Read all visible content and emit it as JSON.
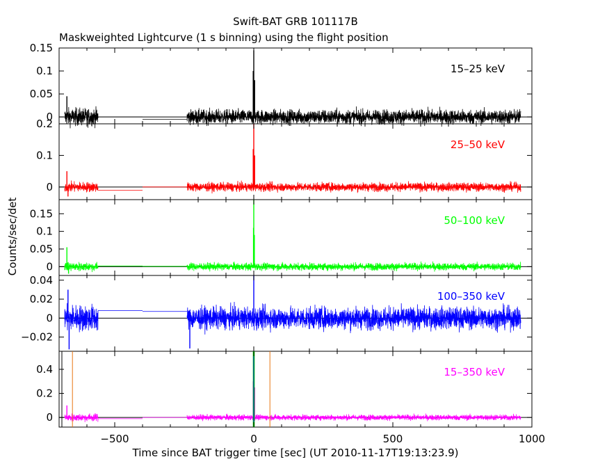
{
  "title": "Swift-BAT GRB 101117B",
  "subtitle": "Maskweighted Lightcurve (1 s binning) using the flight position",
  "ylabel": "Counts/sec/det",
  "xlabel": "Time since BAT trigger time [sec] (UT 2010-11-17T19:13:23.9)",
  "x_tick_labels": [
    "−500",
    "0",
    "500",
    "1000"
  ],
  "colors": {
    "axes": "#000000",
    "vlines_orange": "#e87511",
    "vline_green": "#00cc00",
    "vline_blue": "#0000ff"
  },
  "chart_data": [
    {
      "type": "line",
      "band": "15–25 keV",
      "color": "#000000",
      "xlim": [
        -700,
        1000
      ],
      "ylim": [
        -0.015,
        0.15
      ],
      "y_ticks": [
        "0.15",
        "0.1",
        "0.05",
        "0"
      ],
      "y_tick_values": [
        0.15,
        0.1,
        0.05,
        0
      ],
      "segments": [
        {
          "x": [
            -680,
            -560
          ],
          "y": 0.0,
          "noise": 0.018
        },
        {
          "x": [
            -560,
            -400
          ],
          "y": 0.0,
          "noise": 0
        },
        {
          "x": [
            -400,
            -240
          ],
          "y": -0.005,
          "noise": 0
        },
        {
          "x": [
            -240,
            960
          ],
          "y": 0.0,
          "noise": 0.015
        }
      ],
      "spikes": [
        {
          "x": -672,
          "y": 0.045
        },
        {
          "x": -2,
          "y": 0.1
        },
        {
          "x": 0,
          "y": 0.145
        },
        {
          "x": 3,
          "y": 0.08
        }
      ]
    },
    {
      "type": "line",
      "band": "25–50 keV",
      "color": "#ff0000",
      "xlim": [
        -700,
        1000
      ],
      "ylim": [
        -0.04,
        0.2
      ],
      "y_ticks": [
        "0.2",
        "0.1",
        "0"
      ],
      "y_tick_values": [
        0.2,
        0.1,
        0
      ],
      "segments": [
        {
          "x": [
            -680,
            -560
          ],
          "y": 0.0,
          "noise": 0.015
        },
        {
          "x": [
            -560,
            -400
          ],
          "y": -0.01,
          "noise": 0
        },
        {
          "x": [
            -400,
            -240
          ],
          "y": 0.0,
          "noise": 0
        },
        {
          "x": [
            -240,
            960
          ],
          "y": 0.0,
          "noise": 0.013
        }
      ],
      "spikes": [
        {
          "x": -672,
          "y": 0.05
        },
        {
          "x": -668,
          "y": -0.03
        },
        {
          "x": -2,
          "y": 0.12
        },
        {
          "x": 0,
          "y": 0.2
        },
        {
          "x": 3,
          "y": 0.1
        }
      ]
    },
    {
      "type": "line",
      "band": "50–100 keV",
      "color": "#00ff00",
      "xlim": [
        -700,
        1000
      ],
      "ylim": [
        -0.025,
        0.19
      ],
      "y_ticks": [
        "0.15",
        "0.1",
        "0.05",
        "0"
      ],
      "y_tick_values": [
        0.15,
        0.1,
        0.05,
        0
      ],
      "segments": [
        {
          "x": [
            -680,
            -560
          ],
          "y": 0.0,
          "noise": 0.012
        },
        {
          "x": [
            -560,
            -400
          ],
          "y": 0.002,
          "noise": 0
        },
        {
          "x": [
            -400,
            -240
          ],
          "y": 0.001,
          "noise": 0
        },
        {
          "x": [
            -240,
            960
          ],
          "y": 0.0,
          "noise": 0.01
        }
      ],
      "spikes": [
        {
          "x": -672,
          "y": 0.055
        },
        {
          "x": -666,
          "y": -0.02
        },
        {
          "x": -1,
          "y": 0.11
        },
        {
          "x": 0,
          "y": 0.19
        },
        {
          "x": 2,
          "y": 0.09
        }
      ]
    },
    {
      "type": "line",
      "band": "100–350 keV",
      "color": "#0000ff",
      "xlim": [
        -700,
        1000
      ],
      "ylim": [
        -0.035,
        0.045
      ],
      "y_ticks": [
        "0.04",
        "0.02",
        "0",
        "−0.02"
      ],
      "y_tick_values": [
        0.04,
        0.02,
        0,
        -0.02
      ],
      "segments": [
        {
          "x": [
            -680,
            -560
          ],
          "y": 0.0,
          "noise": 0.013
        },
        {
          "x": [
            -560,
            -400
          ],
          "y": 0.008,
          "noise": 0
        },
        {
          "x": [
            -400,
            -240
          ],
          "y": 0.007,
          "noise": 0
        },
        {
          "x": [
            -240,
            960
          ],
          "y": 0.0,
          "noise": 0.011
        }
      ],
      "spikes": [
        {
          "x": -668,
          "y": 0.03
        },
        {
          "x": -664,
          "y": -0.033
        },
        {
          "x": -230,
          "y": -0.032
        },
        {
          "x": 0,
          "y": 0.045
        }
      ]
    },
    {
      "type": "line",
      "band": "15–350 keV",
      "color": "#ff00ff",
      "xlim": [
        -700,
        1000
      ],
      "ylim": [
        -0.08,
        0.55
      ],
      "y_ticks": [
        "0.4",
        "0.2",
        "0"
      ],
      "y_tick_values": [
        0.4,
        0.2,
        0
      ],
      "segments": [
        {
          "x": [
            -680,
            -560
          ],
          "y": 0.0,
          "noise": 0.03
        },
        {
          "x": [
            -560,
            -400
          ],
          "y": -0.01,
          "noise": 0
        },
        {
          "x": [
            -400,
            -240
          ],
          "y": 0.0,
          "noise": 0
        },
        {
          "x": [
            -240,
            960
          ],
          "y": 0.0,
          "noise": 0.022
        }
      ],
      "spikes": [
        {
          "x": -672,
          "y": 0.1
        },
        {
          "x": -2,
          "y": 0.3
        },
        {
          "x": 0,
          "y": 0.55
        },
        {
          "x": 3,
          "y": 0.25
        }
      ],
      "vlines": [
        {
          "x": -690,
          "color": "#000000"
        },
        {
          "x": -652,
          "color": "#e87511"
        },
        {
          "x": -2,
          "color": "#00cc00"
        },
        {
          "x": 0,
          "color": "#0000ff"
        },
        {
          "x": 2,
          "color": "#00cc00"
        },
        {
          "x": 58,
          "color": "#e87511"
        }
      ]
    }
  ]
}
